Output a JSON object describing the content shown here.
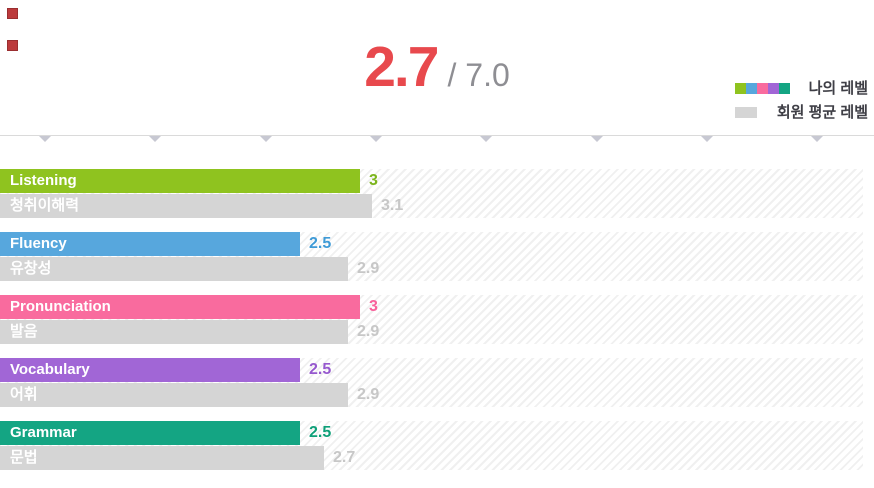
{
  "header": {
    "score": "2.7",
    "max": "/ 7.0"
  },
  "legend": {
    "my_label": "나의 레벨",
    "avg_label": "회원 평균 레벨",
    "palette": [
      "#8fc31f",
      "#57a7dd",
      "#f96b9e",
      "#a166d6",
      "#14a583"
    ],
    "avg_color": "#d5d5d5",
    "avg_value_color": "#c7c7c7"
  },
  "rows": [
    {
      "label": "Listening",
      "label_ko": "청취이해력",
      "my": 3,
      "my_display": "3",
      "avg": 3.1,
      "avg_display": "3.1",
      "color": "#8fc31f",
      "value_color": "#7cb51d"
    },
    {
      "label": "Fluency",
      "label_ko": "유창성",
      "my": 2.5,
      "my_display": "2.5",
      "avg": 2.9,
      "avg_display": "2.9",
      "color": "#57a7dd",
      "value_color": "#3e9ad6"
    },
    {
      "label": "Pronunciation",
      "label_ko": "발음",
      "my": 3,
      "my_display": "3",
      "avg": 2.9,
      "avg_display": "2.9",
      "color": "#f96b9e",
      "value_color": "#f8629b"
    },
    {
      "label": "Vocabulary",
      "label_ko": "어휘",
      "my": 2.5,
      "my_display": "2.5",
      "avg": 2.9,
      "avg_display": "2.9",
      "color": "#a166d6",
      "value_color": "#9659ce"
    },
    {
      "label": "Grammar",
      "label_ko": "문법",
      "my": 2.5,
      "my_display": "2.5",
      "avg": 2.7,
      "avg_display": "2.7",
      "color": "#14a583",
      "value_color": "#0d9f78"
    }
  ],
  "chart_data": {
    "type": "bar",
    "orientation": "horizontal",
    "title": "2.7 / 7.0",
    "overall_score": 2.7,
    "scale_max": 7.0,
    "categories": [
      "Listening",
      "Fluency",
      "Pronunciation",
      "Vocabulary",
      "Grammar"
    ],
    "categories_korean": [
      "청취이해력",
      "유창성",
      "발음",
      "어휘",
      "문법"
    ],
    "series": [
      {
        "name": "나의 레벨",
        "values": [
          3,
          2.5,
          3,
          2.5,
          2.5
        ],
        "colors": [
          "#8fc31f",
          "#57a7dd",
          "#f96b9e",
          "#a166d6",
          "#14a583"
        ]
      },
      {
        "name": "회원 평균 레벨",
        "values": [
          3.1,
          2.9,
          2.9,
          2.9,
          2.7
        ],
        "color": "#d5d5d5"
      }
    ],
    "xlim": [
      0,
      7
    ],
    "grid": false,
    "legend_position": "top-right",
    "value_labels": true
  }
}
